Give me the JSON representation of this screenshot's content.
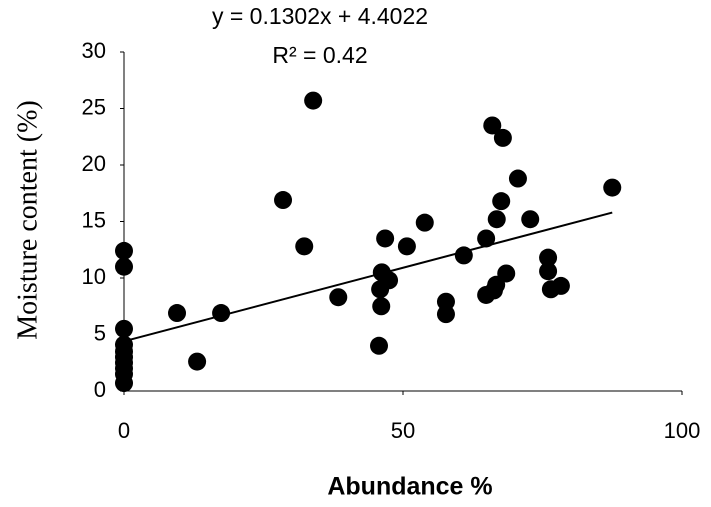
{
  "chart_data": {
    "type": "scatter",
    "x_label": "Abundance %",
    "y_label": "Moisture content (%)",
    "xlim": [
      0,
      100
    ],
    "xticks": [
      0,
      50,
      100
    ],
    "ylim": [
      0,
      30
    ],
    "yticks": [
      0,
      5,
      10,
      15,
      20,
      25,
      30
    ],
    "color": "#000000",
    "x": [
      0,
      0,
      0,
      0,
      0,
      0,
      0,
      0,
      0,
      0,
      9.5,
      13.1,
      17.4,
      28.5,
      32.3,
      33.9,
      38.4,
      45.7,
      45.9,
      46.1,
      46.2,
      46.8,
      47.5,
      50.7,
      53.9,
      57.7,
      57.7,
      60.9,
      64.9,
      64.9,
      66.0,
      66.3,
      66.7,
      66.8,
      67.6,
      67.9,
      68.5,
      70.6,
      72.8,
      76.0,
      76.0,
      76.5,
      78.3,
      87.5
    ],
    "values": [
      12.4,
      11.0,
      5.5,
      4.1,
      3.5,
      3.0,
      2.5,
      2.0,
      1.5,
      0.7,
      6.9,
      2.6,
      6.9,
      16.9,
      12.8,
      25.7,
      8.3,
      4.0,
      9.0,
      7.5,
      10.5,
      13.5,
      9.8,
      12.8,
      14.9,
      7.9,
      6.8,
      12.0,
      13.5,
      8.5,
      23.5,
      8.9,
      9.4,
      15.2,
      16.8,
      22.4,
      10.4,
      18.8,
      15.2,
      11.8,
      10.6,
      9.0,
      9.3,
      18.0
    ],
    "trend_line": {
      "equation": "y = 0.1302x + 4.4022",
      "r_squared": "R² = 0.42",
      "x": [
        0,
        87.5
      ],
      "values": [
        4.4,
        15.79
      ]
    }
  }
}
